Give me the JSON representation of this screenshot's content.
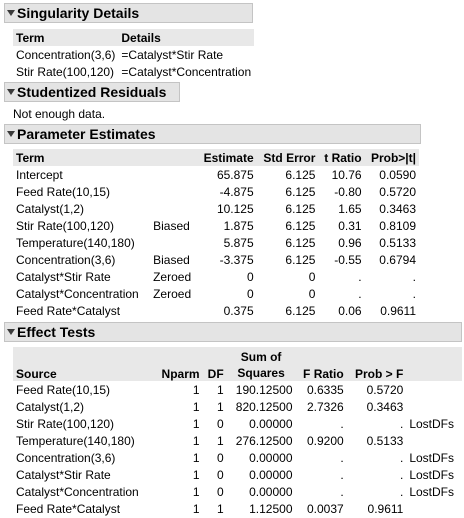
{
  "singularity": {
    "title": "Singularity Details",
    "headers": [
      "Term",
      "Details"
    ],
    "rows": [
      [
        "Concentration(3,6)",
        "=Catalyst*Stir Rate"
      ],
      [
        "Stir Rate(100,120)",
        "=Catalyst*Concentration"
      ]
    ]
  },
  "residuals": {
    "title": "Studentized Residuals",
    "message": "Not enough data."
  },
  "parameters": {
    "title": "Parameter Estimates",
    "headers": [
      "Term",
      "",
      "Estimate",
      "Std Error",
      "t Ratio",
      "Prob>|t|"
    ],
    "rows": [
      [
        "Intercept",
        "",
        "65.875",
        "6.125",
        "10.76",
        "0.0590"
      ],
      [
        "Feed Rate(10,15)",
        "",
        "-4.875",
        "6.125",
        "-0.80",
        "0.5720"
      ],
      [
        "Catalyst(1,2)",
        "",
        "10.125",
        "6.125",
        "1.65",
        "0.3463"
      ],
      [
        "Stir Rate(100,120)",
        "Biased",
        "1.875",
        "6.125",
        "0.31",
        "0.8109"
      ],
      [
        "Temperature(140,180)",
        "",
        "5.875",
        "6.125",
        "0.96",
        "0.5133"
      ],
      [
        "Concentration(3,6)",
        "Biased",
        "-3.375",
        "6.125",
        "-0.55",
        "0.6794"
      ],
      [
        "Catalyst*Stir Rate",
        "Zeroed",
        "0",
        "0",
        ".",
        "."
      ],
      [
        "Catalyst*Concentration",
        "Zeroed",
        "0",
        "0",
        ".",
        "."
      ],
      [
        "Feed Rate*Catalyst",
        "",
        "0.375",
        "6.125",
        "0.06",
        "0.9611"
      ]
    ]
  },
  "effects": {
    "title": "Effect Tests",
    "headers": [
      "Source",
      "Nparm",
      "DF",
      "Sum of",
      "Squares",
      "F Ratio",
      "Prob > F",
      ""
    ],
    "rows": [
      [
        "Feed Rate(10,15)",
        "1",
        "1",
        "190.12500",
        "0.6335",
        "0.5720",
        ""
      ],
      [
        "Catalyst(1,2)",
        "1",
        "1",
        "820.12500",
        "2.7326",
        "0.3463",
        ""
      ],
      [
        "Stir Rate(100,120)",
        "1",
        "0",
        "0.00000",
        ".",
        ".",
        "LostDFs"
      ],
      [
        "Temperature(140,180)",
        "1",
        "1",
        "276.12500",
        "0.9200",
        "0.5133",
        ""
      ],
      [
        "Concentration(3,6)",
        "1",
        "0",
        "0.00000",
        ".",
        ".",
        "LostDFs"
      ],
      [
        "Catalyst*Stir Rate",
        "1",
        "0",
        "0.00000",
        ".",
        ".",
        "LostDFs"
      ],
      [
        "Catalyst*Concentration",
        "1",
        "0",
        "0.00000",
        ".",
        ".",
        "LostDFs"
      ],
      [
        "Feed Rate*Catalyst",
        "1",
        "1",
        "1.12500",
        "0.0037",
        "0.9611",
        ""
      ]
    ]
  },
  "icons": {
    "outline_toggle": "disclosure-triangle-icon"
  }
}
